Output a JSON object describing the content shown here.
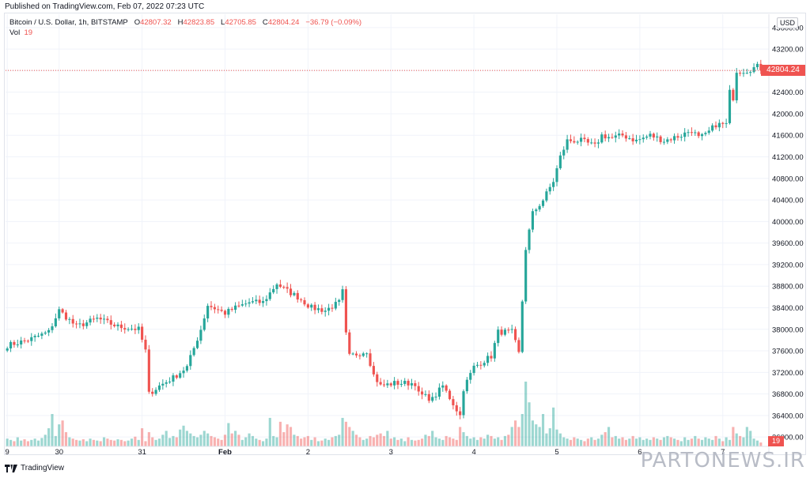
{
  "header": {
    "published": "Published on TradingView.com, Feb 07, 2022 07:23 UTC"
  },
  "legend": {
    "symbol": "Bitcoin / U.S. Dollar, 1h, BITSTAMP",
    "open_label": "O",
    "open": "42807.32",
    "high_label": "H",
    "high": "42823.85",
    "low_label": "L",
    "low": "42705.85",
    "close_label": "C",
    "close": "42804.24",
    "change": "−36.79 (−0.09%)",
    "vol_label": "Vol",
    "vol_value": "19"
  },
  "currency": "USD",
  "last_price_label": "42804.24",
  "volume_label": "19",
  "footer": {
    "brand": "TradingView"
  },
  "watermark": "PARTONEWS.IR",
  "colors": {
    "up": "#26a69a",
    "down": "#ef5350",
    "grid": "#f0f3fa",
    "text": "#131722"
  },
  "chart_data": {
    "type": "candlestick",
    "symbol": "Bitcoin / U.S. Dollar, 1h, BITSTAMP",
    "ylim": [
      35900,
      43700
    ],
    "yticks": [
      "36000.00",
      "36400.00",
      "36800.00",
      "37200.00",
      "37600.00",
      "38000.00",
      "38400.00",
      "38800.00",
      "39200.00",
      "39600.00",
      "40000.00",
      "40400.00",
      "40800.00",
      "41200.00",
      "41600.00",
      "42000.00",
      "42400.00",
      "42800.00",
      "43200.00",
      "43600.00"
    ],
    "xticks": [
      {
        "label": "9",
        "index": 0
      },
      {
        "label": "30",
        "index": 15
      },
      {
        "label": "31",
        "index": 39
      },
      {
        "label": "Feb",
        "index": 63
      },
      {
        "label": "2",
        "index": 87
      },
      {
        "label": "3",
        "index": 111
      },
      {
        "label": "4",
        "index": 135
      },
      {
        "label": "5",
        "index": 159
      },
      {
        "label": "6",
        "index": 183
      },
      {
        "label": "7",
        "index": 207
      }
    ],
    "last_price": 42804.24,
    "key_points": [
      [
        0,
        37700
      ],
      [
        6,
        37800
      ],
      [
        12,
        37950
      ],
      [
        15,
        38350
      ],
      [
        20,
        38050
      ],
      [
        26,
        38200
      ],
      [
        32,
        38050
      ],
      [
        38,
        38000
      ],
      [
        40,
        37600
      ],
      [
        41,
        36800
      ],
      [
        44,
        36950
      ],
      [
        48,
        37100
      ],
      [
        52,
        37300
      ],
      [
        56,
        38000
      ],
      [
        58,
        38450
      ],
      [
        63,
        38300
      ],
      [
        66,
        38400
      ],
      [
        70,
        38500
      ],
      [
        74,
        38500
      ],
      [
        78,
        38850
      ],
      [
        80,
        38750
      ],
      [
        84,
        38600
      ],
      [
        88,
        38400
      ],
      [
        92,
        38350
      ],
      [
        96,
        38500
      ],
      [
        97,
        38700
      ],
      [
        98,
        37900
      ],
      [
        99,
        37500
      ],
      [
        104,
        37600
      ],
      [
        106,
        37150
      ],
      [
        108,
        36950
      ],
      [
        112,
        37000
      ],
      [
        118,
        37000
      ],
      [
        119,
        36800
      ],
      [
        123,
        36700
      ],
      [
        126,
        36950
      ],
      [
        131,
        36400
      ],
      [
        132,
        36900
      ],
      [
        135,
        37300
      ],
      [
        140,
        37500
      ],
      [
        142,
        37950
      ],
      [
        146,
        37950
      ],
      [
        148,
        37550
      ],
      [
        150,
        39500
      ],
      [
        152,
        40150
      ],
      [
        155,
        40400
      ],
      [
        158,
        40750
      ],
      [
        160,
        41200
      ],
      [
        162,
        41500
      ],
      [
        166,
        41500
      ],
      [
        170,
        41400
      ],
      [
        172,
        41600
      ],
      [
        175,
        41550
      ],
      [
        178,
        41600
      ],
      [
        182,
        41500
      ],
      [
        186,
        41600
      ],
      [
        190,
        41500
      ],
      [
        195,
        41600
      ],
      [
        198,
        41700
      ],
      [
        200,
        41550
      ],
      [
        202,
        41600
      ],
      [
        205,
        41800
      ],
      [
        208,
        41800
      ],
      [
        209,
        42400
      ],
      [
        210,
        42300
      ],
      [
        211,
        42800
      ],
      [
        213,
        42800
      ],
      [
        214,
        42804.24
      ]
    ],
    "volume": [
      12,
      10,
      8,
      14,
      9,
      11,
      8,
      10,
      12,
      9,
      13,
      18,
      28,
      50,
      16,
      34,
      40,
      22,
      14,
      12,
      10,
      9,
      11,
      8,
      12,
      10,
      9,
      8,
      14,
      12,
      10,
      9,
      11,
      10,
      8,
      9,
      12,
      15,
      10,
      28,
      8,
      22,
      14,
      10,
      12,
      18,
      24,
      13,
      16,
      14,
      26,
      32,
      24,
      20,
      16,
      14,
      18,
      24,
      20,
      16,
      14,
      12,
      10,
      18,
      36,
      20,
      24,
      18,
      10,
      14,
      20,
      16,
      12,
      10,
      8,
      12,
      44,
      16,
      14,
      38,
      22,
      34,
      30,
      18,
      16,
      12,
      14,
      16,
      10,
      14,
      8,
      9,
      12,
      10,
      14,
      16,
      18,
      44,
      38,
      30,
      24,
      18,
      14,
      10,
      12,
      16,
      14,
      18,
      20,
      16,
      24,
      12,
      14,
      10,
      12,
      8,
      14,
      10,
      9,
      10,
      12,
      18,
      16,
      24,
      14,
      12,
      10,
      16,
      14,
      12,
      10,
      30,
      22,
      16,
      12,
      14,
      10,
      14,
      12,
      18,
      16,
      12,
      14,
      10,
      16,
      18,
      30,
      40,
      30,
      50,
      100,
      68,
      40,
      34,
      30,
      50,
      20,
      28,
      60,
      26,
      20,
      14,
      12,
      10,
      14,
      12,
      10,
      8,
      12,
      14,
      10,
      12,
      18,
      22,
      30,
      14,
      16,
      12,
      14,
      10,
      12,
      16,
      12,
      14,
      10,
      12,
      10,
      14,
      12,
      10,
      14,
      16,
      14,
      12,
      10,
      8,
      14,
      10,
      12,
      16,
      12,
      10,
      14,
      12,
      10,
      16,
      12,
      8,
      14,
      10,
      30,
      20,
      16,
      14,
      30,
      24,
      12,
      9,
      6
    ],
    "volume_max": 100
  }
}
